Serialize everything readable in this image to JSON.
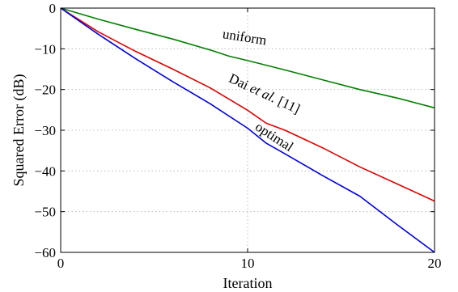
{
  "chart_data": {
    "type": "line",
    "title": "",
    "xlabel": "Iteration",
    "ylabel": "Squared Error (dB)",
    "xlim": [
      0,
      20
    ],
    "ylim": [
      -60,
      0
    ],
    "xticks": [
      0,
      10,
      20
    ],
    "yticks": [
      0,
      -10,
      -20,
      -30,
      -40,
      -50,
      -60
    ],
    "grid": true,
    "series": [
      {
        "color": "#008000",
        "x": [
          0,
          2,
          4,
          6,
          8,
          9,
          10,
          12,
          14,
          16,
          18,
          20
        ],
        "y": [
          0,
          -2.7,
          -5.2,
          -7.6,
          -10.3,
          -11.8,
          -12.9,
          -15.2,
          -17.6,
          -20.0,
          -22.1,
          -24.5
        ]
      },
      {
        "color": "#e00000",
        "x": [
          0,
          2,
          4,
          6,
          8,
          10,
          11,
          12,
          14,
          16,
          18,
          20
        ],
        "y": [
          0,
          -5.8,
          -10.6,
          -15.0,
          -19.6,
          -25.1,
          -28.3,
          -30.0,
          -34.3,
          -39.0,
          -43.2,
          -47.4
        ]
      },
      {
        "color": "#0000e0",
        "x": [
          0,
          2,
          4,
          6,
          8,
          10,
          11,
          12,
          14,
          16,
          18,
          20
        ],
        "y": [
          0,
          -6.4,
          -12.4,
          -18.1,
          -23.5,
          -29.5,
          -33.2,
          -35.8,
          -41.1,
          -46.2,
          -53.2,
          -60.0
        ]
      }
    ],
    "annotations": [
      {
        "text": "uniform",
        "x": 9.8,
        "y": -8.2,
        "angle": 9
      },
      {
        "text_plain": "Dai ",
        "text_italic": "et al.",
        "text_end": " [11]",
        "x": 10.8,
        "y": -22.0,
        "angle": 25
      },
      {
        "text": "optimal",
        "x": 11.3,
        "y": -32.5,
        "angle": 33
      }
    ]
  }
}
